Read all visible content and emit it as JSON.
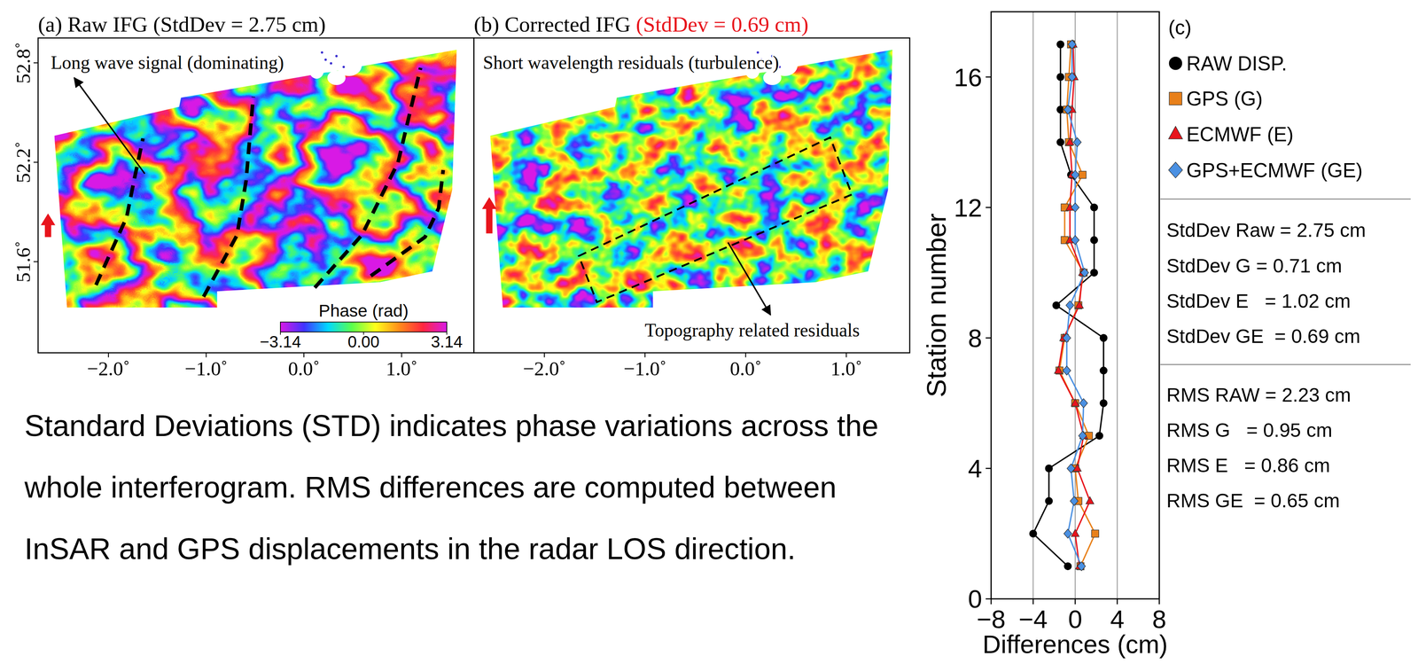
{
  "panels": [
    {
      "title": "(a) Raw IFG (StdDev = 2.75 cm)",
      "xlim": [
        -2.72,
        1.74
      ],
      "xticks": [
        {
          "value": -2,
          "label": "−2.0˚"
        },
        {
          "value": -1,
          "label": "−1.0˚"
        },
        {
          "value": 0,
          "label": "0.0˚"
        },
        {
          "value": 1,
          "label": "1.0˚"
        }
      ],
      "ylim": [
        51.05,
        52.95
      ],
      "yticks": [
        {
          "value": 51.6,
          "label": "51.6˚"
        },
        {
          "value": 52.2,
          "label": "52.2˚"
        },
        {
          "value": 52.8,
          "label": "52.8˚"
        }
      ],
      "annotations": [
        "Long wave signal (dominating)"
      ],
      "colorbar": {
        "label": "Phase (rad)",
        "range": [
          -3.14,
          3.14
        ],
        "ticks": [
          {
            "value": -3.14,
            "label": "−3.14"
          },
          {
            "value": 0,
            "label": "0.00"
          },
          {
            "value": 3.14,
            "label": "3.14"
          }
        ]
      }
    },
    {
      "title": "(b) Corrected IFG",
      "title_note": "(StdDev = 0.69 cm)",
      "xlim": [
        -2.7,
        1.63
      ],
      "xticks": [
        {
          "value": -2,
          "label": "−2.0˚"
        },
        {
          "value": -1,
          "label": "−1.0˚"
        },
        {
          "value": 0,
          "label": "0.0˚"
        },
        {
          "value": 1,
          "label": "1.0˚"
        }
      ],
      "annotations": [
        "Short wavelength residuals (turbulence)",
        "Topography related residuals"
      ]
    }
  ],
  "caption": "Standard Deviations (STD) indicates phase variations across the whole interferogram. RMS differences are computed between InSAR and GPS displacements in the radar LOS direction.",
  "chart_data": {
    "type": "line",
    "orientation": "horizontal",
    "panel_label": "(c)",
    "xlabel": "Differences (cm)",
    "ylabel": "Station number",
    "y": [
      1,
      2,
      3,
      4,
      5,
      6,
      7,
      8,
      9,
      10,
      11,
      12,
      13,
      14,
      15,
      16,
      17
    ],
    "series": [
      {
        "name": "RAW DISP.",
        "color": "#000000",
        "marker": "circle",
        "values": [
          -0.7,
          -4.0,
          -2.5,
          -2.5,
          2.3,
          2.7,
          2.7,
          2.7,
          -1.8,
          1.8,
          1.8,
          1.8,
          -0.4,
          -1.4,
          -1.4,
          -1.4,
          -1.4
        ]
      },
      {
        "name": "GPS (G)",
        "color": "#e8801a",
        "marker": "square",
        "values": [
          0.5,
          1.9,
          0.3,
          0.0,
          1.3,
          0.0,
          -1.5,
          -1.0,
          0.3,
          0.8,
          -1.0,
          -1.0,
          0.7,
          -0.6,
          -0.8,
          -0.6,
          -0.4
        ]
      },
      {
        "name": "ECMWF (E)",
        "color": "#e8141c",
        "marker": "triangle",
        "values": [
          0.4,
          0.0,
          1.4,
          0.2,
          0.8,
          0.0,
          -1.6,
          -1.1,
          0.4,
          0.7,
          -0.5,
          -0.5,
          -0.3,
          -0.5,
          -0.3,
          -0.1,
          -0.2
        ]
      },
      {
        "name": "GPS+ECMWF (GE)",
        "color": "#4a90e2",
        "marker": "diamond",
        "values": [
          0.6,
          -0.7,
          -0.1,
          -0.4,
          0.7,
          0.8,
          -0.8,
          -0.8,
          -0.5,
          0.9,
          0.0,
          0.0,
          0.0,
          0.2,
          -0.7,
          -0.3,
          -0.3
        ]
      }
    ],
    "xlim": [
      -8,
      8
    ],
    "xticks": [
      {
        "value": -8,
        "label": "−8"
      },
      {
        "value": -4,
        "label": "−4"
      },
      0,
      4,
      8
    ],
    "ylim": [
      0,
      18
    ],
    "yticks": [
      0,
      4,
      8,
      12,
      16
    ],
    "grid": true,
    "legend": "right",
    "annotations": [
      [
        "StdDev Raw = 2.75 cm",
        "StdDev G = 0.71 cm",
        "StdDev E   = 1.02 cm",
        "StdDev GE  = 0.69 cm"
      ],
      [
        "RMS RAW = 2.23 cm",
        "RMS G   = 0.95 cm",
        "RMS E   = 0.86 cm",
        "RMS GE  = 0.65 cm"
      ]
    ]
  }
}
